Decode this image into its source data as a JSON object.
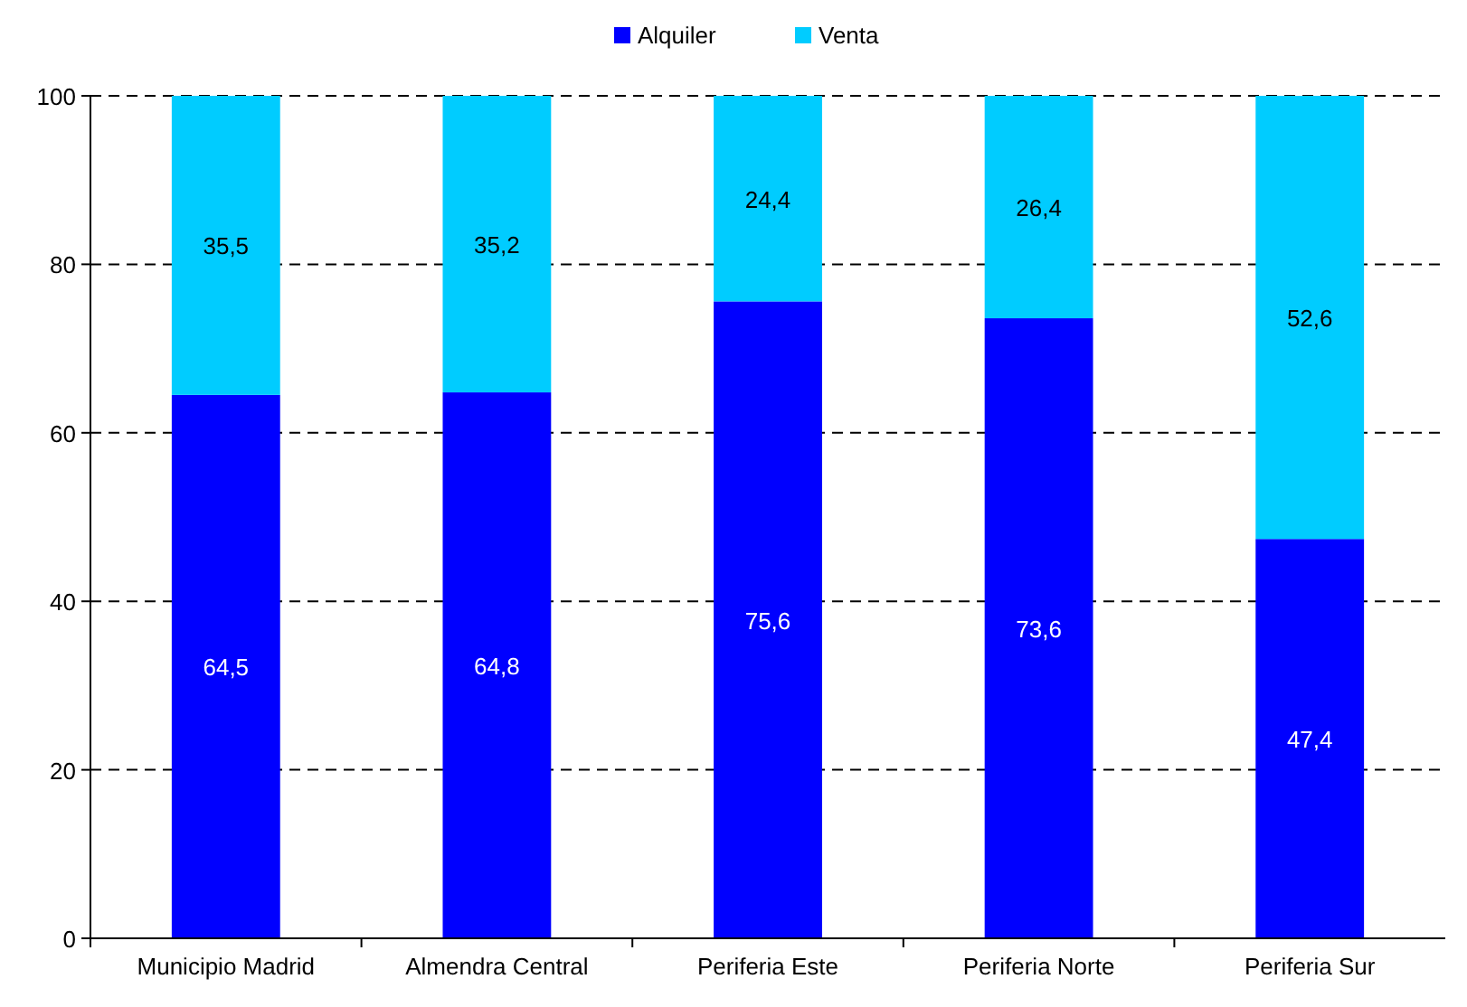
{
  "chart_data": {
    "type": "bar",
    "stacked": true,
    "categories": [
      "Municipio Madrid",
      "Almendra Central",
      "Periferia Este",
      "Periferia Norte",
      "Periferia Sur"
    ],
    "series": [
      {
        "name": "Alquiler",
        "color": "#0000ff",
        "values": [
          64.5,
          64.8,
          75.6,
          73.6,
          47.4
        ],
        "value_labels": [
          "64,5",
          "64,8",
          "75,6",
          "73,6",
          "47,4"
        ]
      },
      {
        "name": "Venta",
        "color": "#00ccff",
        "values": [
          35.5,
          35.2,
          24.4,
          26.4,
          52.6
        ],
        "value_labels": [
          "35,5",
          "35,2",
          "24,4",
          "26,4",
          "52,6"
        ]
      }
    ],
    "ylim": [
      0,
      100
    ],
    "yticks": [
      0,
      20,
      40,
      60,
      80,
      100
    ],
    "grid": "y",
    "legend": "top"
  }
}
